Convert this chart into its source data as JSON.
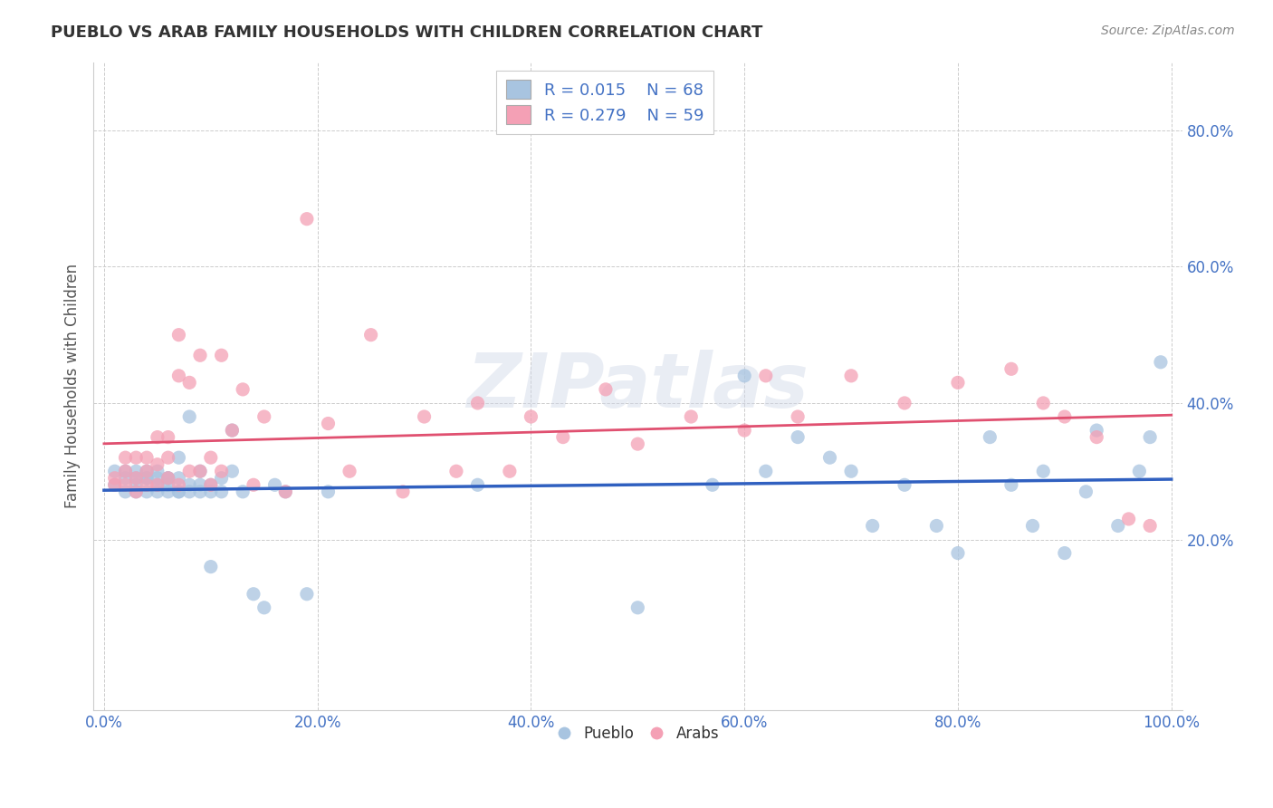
{
  "title": "PUEBLO VS ARAB FAMILY HOUSEHOLDS WITH CHILDREN CORRELATION CHART",
  "source": "Source: ZipAtlas.com",
  "ylabel": "Family Households with Children",
  "watermark": "ZIPatlas",
  "legend_pueblo": "Pueblo",
  "legend_arab": "Arabs",
  "legend_r_pueblo": "R = 0.015",
  "legend_n_pueblo": "N = 68",
  "legend_r_arab": "R = 0.279",
  "legend_n_arab": "N = 59",
  "pueblo_color": "#a8c4e0",
  "arab_color": "#f4a0b5",
  "pueblo_line_color": "#3060c0",
  "arab_line_color": "#e05070",
  "tick_label_color": "#4472c4",
  "title_color": "#333333",
  "axis_label_color": "#555555",
  "grid_color": "#cccccc",
  "background_color": "#ffffff",
  "xlim": [
    -0.01,
    1.01
  ],
  "ylim": [
    -0.05,
    0.9
  ],
  "xtick_vals": [
    0.0,
    0.2,
    0.4,
    0.6,
    0.8,
    1.0
  ],
  "ytick_vals": [
    0.2,
    0.4,
    0.6,
    0.8
  ],
  "xtick_labels": [
    "0.0%",
    "20.0%",
    "40.0%",
    "60.0%",
    "80.0%",
    "100.0%"
  ],
  "ytick_labels": [
    "20.0%",
    "40.0%",
    "60.0%",
    "80.0%"
  ],
  "pueblo_x": [
    0.01,
    0.01,
    0.02,
    0.02,
    0.02,
    0.03,
    0.03,
    0.03,
    0.03,
    0.04,
    0.04,
    0.04,
    0.04,
    0.05,
    0.05,
    0.05,
    0.05,
    0.06,
    0.06,
    0.06,
    0.06,
    0.07,
    0.07,
    0.07,
    0.07,
    0.08,
    0.08,
    0.08,
    0.09,
    0.09,
    0.09,
    0.1,
    0.1,
    0.1,
    0.11,
    0.11,
    0.12,
    0.12,
    0.13,
    0.14,
    0.15,
    0.16,
    0.17,
    0.19,
    0.21,
    0.35,
    0.5,
    0.57,
    0.6,
    0.62,
    0.65,
    0.68,
    0.7,
    0.72,
    0.75,
    0.78,
    0.8,
    0.83,
    0.85,
    0.87,
    0.88,
    0.9,
    0.92,
    0.93,
    0.95,
    0.97,
    0.98,
    0.99
  ],
  "pueblo_y": [
    0.3,
    0.28,
    0.29,
    0.27,
    0.3,
    0.29,
    0.27,
    0.28,
    0.3,
    0.29,
    0.27,
    0.29,
    0.3,
    0.28,
    0.27,
    0.3,
    0.29,
    0.27,
    0.29,
    0.28,
    0.29,
    0.27,
    0.32,
    0.29,
    0.27,
    0.28,
    0.38,
    0.27,
    0.28,
    0.27,
    0.3,
    0.16,
    0.28,
    0.27,
    0.29,
    0.27,
    0.3,
    0.36,
    0.27,
    0.12,
    0.1,
    0.28,
    0.27,
    0.12,
    0.27,
    0.28,
    0.1,
    0.28,
    0.44,
    0.3,
    0.35,
    0.32,
    0.3,
    0.22,
    0.28,
    0.22,
    0.18,
    0.35,
    0.28,
    0.22,
    0.3,
    0.18,
    0.27,
    0.36,
    0.22,
    0.3,
    0.35,
    0.46
  ],
  "arab_x": [
    0.01,
    0.01,
    0.02,
    0.02,
    0.02,
    0.03,
    0.03,
    0.03,
    0.04,
    0.04,
    0.04,
    0.05,
    0.05,
    0.05,
    0.06,
    0.06,
    0.06,
    0.07,
    0.07,
    0.07,
    0.08,
    0.08,
    0.09,
    0.09,
    0.1,
    0.1,
    0.11,
    0.11,
    0.12,
    0.13,
    0.14,
    0.15,
    0.17,
    0.19,
    0.21,
    0.23,
    0.25,
    0.28,
    0.3,
    0.33,
    0.35,
    0.38,
    0.4,
    0.43,
    0.47,
    0.5,
    0.55,
    0.6,
    0.62,
    0.65,
    0.7,
    0.75,
    0.8,
    0.85,
    0.88,
    0.9,
    0.93,
    0.96,
    0.98
  ],
  "arab_y": [
    0.29,
    0.28,
    0.3,
    0.28,
    0.32,
    0.27,
    0.29,
    0.32,
    0.3,
    0.28,
    0.32,
    0.28,
    0.31,
    0.35,
    0.29,
    0.32,
    0.35,
    0.28,
    0.44,
    0.5,
    0.3,
    0.43,
    0.3,
    0.47,
    0.28,
    0.32,
    0.3,
    0.47,
    0.36,
    0.42,
    0.28,
    0.38,
    0.27,
    0.67,
    0.37,
    0.3,
    0.5,
    0.27,
    0.38,
    0.3,
    0.4,
    0.3,
    0.38,
    0.35,
    0.42,
    0.34,
    0.38,
    0.36,
    0.44,
    0.38,
    0.44,
    0.4,
    0.43,
    0.45,
    0.4,
    0.38,
    0.35,
    0.23,
    0.22
  ]
}
